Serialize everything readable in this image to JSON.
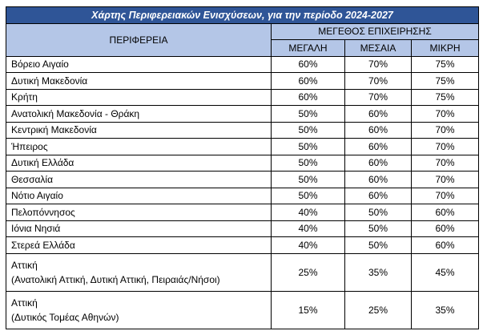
{
  "table": {
    "title": "Χάρτης Περιφερειακών Ενισχύσεων, για την περίοδο 2024-2027",
    "region_header": "ΠΕΡΙΦΕΡΕΙΑ",
    "size_header": "ΜΕΓΕΘΟΣ ΕΠΙΧΕΙΡΗΣΗΣ",
    "size_columns": [
      "ΜΕΓΑΛΗ",
      "ΜΕΣΑΙΑ",
      "ΜΙΚΡΗ"
    ],
    "rows": [
      {
        "region": "Βόρειο Αιγαίο",
        "values": [
          "60%",
          "70%",
          "75%"
        ]
      },
      {
        "region": "Δυτική Μακεδονία",
        "values": [
          "60%",
          "70%",
          "75%"
        ]
      },
      {
        "region": "Κρήτη",
        "values": [
          "60%",
          "70%",
          "75%"
        ]
      },
      {
        "region": "Ανατολική Μακεδονία - Θράκη",
        "values": [
          "50%",
          "60%",
          "70%"
        ]
      },
      {
        "region": "Κεντρική Μακεδονία",
        "values": [
          "50%",
          "60%",
          "70%"
        ]
      },
      {
        "region": "Ήπειρος",
        "values": [
          "50%",
          "60%",
          "70%"
        ]
      },
      {
        "region": "Δυτική Ελλάδα",
        "values": [
          "50%",
          "60%",
          "70%"
        ]
      },
      {
        "region": "Θεσσαλία",
        "values": [
          "50%",
          "60%",
          "70%"
        ]
      },
      {
        "region": "Νότιο Αιγαίο",
        "values": [
          "50%",
          "60%",
          "70%"
        ]
      },
      {
        "region": "Πελοπόννησος",
        "values": [
          "40%",
          "50%",
          "60%"
        ]
      },
      {
        "region": "Ιόνια Νησιά",
        "values": [
          "40%",
          "50%",
          "60%"
        ]
      },
      {
        "region": "Στερεά Ελλάδα",
        "values": [
          "40%",
          "50%",
          "60%"
        ]
      },
      {
        "region": "Αττική",
        "note": "(Ανατολική Αττική, Δυτική Αττική, Πειραιάς/Νήσοι)",
        "values": [
          "25%",
          "35%",
          "45%"
        ]
      },
      {
        "region": "Αττική",
        "note": "(Δυτικός Τομέας Αθηνών)",
        "values": [
          "15%",
          "25%",
          "35%"
        ]
      }
    ]
  }
}
